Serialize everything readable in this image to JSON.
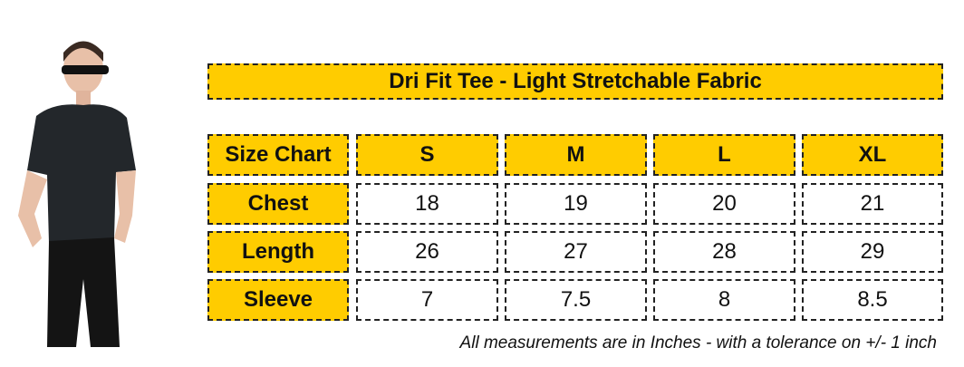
{
  "title": "Dri Fit Tee - Light Stretchable Fabric",
  "table": {
    "header": [
      "Size Chart",
      "S",
      "M",
      "L",
      "XL"
    ],
    "rows": [
      {
        "label": "Chest",
        "values": [
          "18",
          "19",
          "20",
          "21"
        ]
      },
      {
        "label": "Length",
        "values": [
          "26",
          "27",
          "28",
          "29"
        ]
      },
      {
        "label": "Sleeve",
        "values": [
          "7",
          "7.5",
          "8",
          "8.5"
        ]
      }
    ]
  },
  "note": "All measurements are in Inches - with a tolerance on +/- 1 inch",
  "colors": {
    "header_fill": "#ffcc00",
    "border": "#222222"
  }
}
